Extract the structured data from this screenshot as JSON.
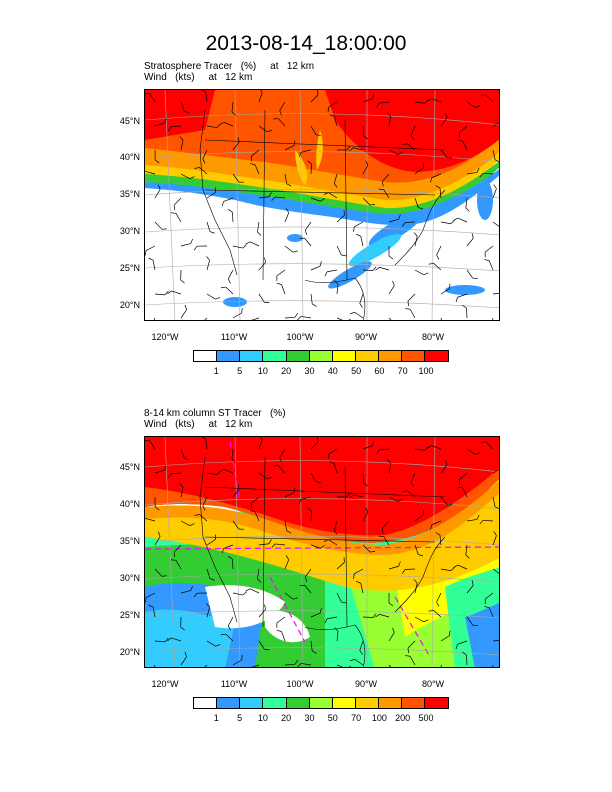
{
  "title": "2013-08-14_18:00:00",
  "panels": [
    {
      "id": "top",
      "subtitle_line1": "Stratosphere Tracer   (%)     at   12 km",
      "subtitle_line2": "Wind   (kts)     at   12 km",
      "lat_labels": [
        "45°N",
        "40°N",
        "35°N",
        "30°N",
        "25°N",
        "20°N"
      ],
      "lon_labels": [
        "120°W",
        "110°W",
        "100°W",
        "90°W",
        "80°W"
      ],
      "colorbar": {
        "labels": [
          "1",
          "5",
          "10",
          "20",
          "30",
          "40",
          "50",
          "60",
          "70",
          "100"
        ],
        "colors": [
          "#ffffff",
          "#3399ff",
          "#33ccff",
          "#33ff99",
          "#33cc33",
          "#99ff33",
          "#ffff00",
          "#ffcc00",
          "#ff9900",
          "#ff5500",
          "#ff0000"
        ]
      }
    },
    {
      "id": "bottom",
      "subtitle_line1": "8-14 km column ST Tracer   (%)",
      "subtitle_line2": "Wind   (kts)     at   12 km",
      "lat_labels": [
        "45°N",
        "40°N",
        "35°N",
        "30°N",
        "25°N",
        "20°N"
      ],
      "lon_labels": [
        "120°W",
        "110°W",
        "100°W",
        "90°W",
        "80°W"
      ],
      "colorbar": {
        "labels": [
          "1",
          "5",
          "10",
          "20",
          "30",
          "50",
          "70",
          "100",
          "200",
          "500"
        ],
        "colors": [
          "#ffffff",
          "#3399ff",
          "#33ccff",
          "#33ff99",
          "#33cc33",
          "#99ff33",
          "#ffff00",
          "#ffcc00",
          "#ff9900",
          "#ff5500",
          "#ff0000"
        ]
      }
    }
  ]
}
